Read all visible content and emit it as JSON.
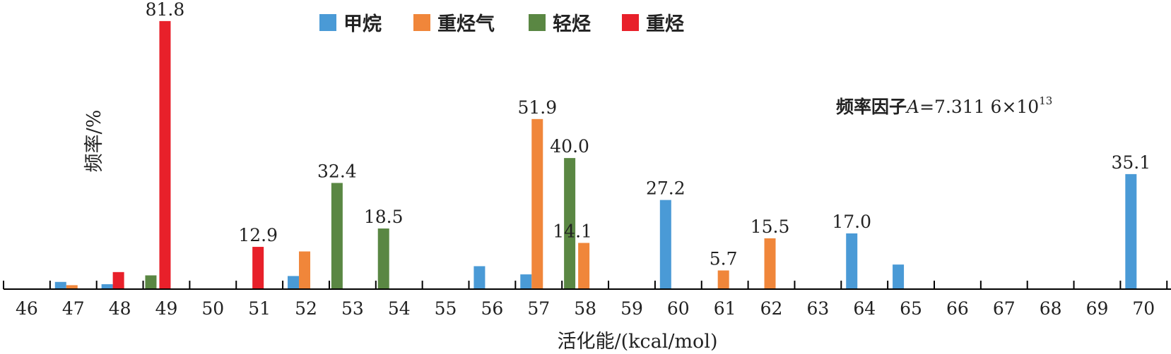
{
  "chart_data": {
    "type": "bar",
    "xlabel": "活化能/(kcal/mol)",
    "ylabel": "频率/%",
    "annotation": {
      "prefix": "频率因子",
      "symbol": "A",
      "value": "=7.311 6×10",
      "exponent": "13"
    },
    "categories": [
      "46",
      "47",
      "48",
      "49",
      "50",
      "51",
      "52",
      "53",
      "54",
      "55",
      "56",
      "57",
      "58",
      "59",
      "60",
      "61",
      "62",
      "63",
      "64",
      "65",
      "66",
      "67",
      "68",
      "69",
      "70"
    ],
    "ylim": [
      0,
      85
    ],
    "grid": false,
    "legend_position": "top",
    "series": [
      {
        "name": "甲烷",
        "color": "#4a9ad6",
        "points": [
          {
            "x": "47",
            "value": 2.2
          },
          {
            "x": "48",
            "value": 1.5
          },
          {
            "x": "52",
            "value": 4.0
          },
          {
            "x": "56",
            "value": 7.0
          },
          {
            "x": "57",
            "value": 4.5
          },
          {
            "x": "60",
            "value": 27.2,
            "label": "27.2"
          },
          {
            "x": "64",
            "value": 17.0,
            "label": "17.0"
          },
          {
            "x": "65",
            "value": 7.5
          },
          {
            "x": "70",
            "value": 35.1,
            "label": "35.1"
          }
        ]
      },
      {
        "name": "重烃气",
        "color": "#f0863a",
        "points": [
          {
            "x": "47",
            "value": 1.2
          },
          {
            "x": "48",
            "value": 1.2
          },
          {
            "x": "52",
            "value": 11.5
          },
          {
            "x": "57",
            "value": 51.9,
            "label": "51.9"
          },
          {
            "x": "58",
            "value": 14.1,
            "label": "14.1"
          },
          {
            "x": "61",
            "value": 5.7,
            "label": "5.7"
          },
          {
            "x": "62",
            "value": 15.5,
            "label": "15.5"
          }
        ]
      },
      {
        "name": "轻烃",
        "color": "#5a8743",
        "points": [
          {
            "x": "49",
            "value": 4.2
          },
          {
            "x": "53",
            "value": 32.4,
            "label": "32.4"
          },
          {
            "x": "54",
            "value": 18.5,
            "label": "18.5"
          },
          {
            "x": "58",
            "value": 40.0,
            "label": "40.0"
          }
        ]
      },
      {
        "name": "重烃",
        "color": "#e8202a",
        "points": [
          {
            "x": "48",
            "value": 5.2
          },
          {
            "x": "49",
            "value": 81.8,
            "label": "81.8"
          },
          {
            "x": "51",
            "value": 12.9,
            "label": "12.9"
          }
        ]
      }
    ]
  }
}
